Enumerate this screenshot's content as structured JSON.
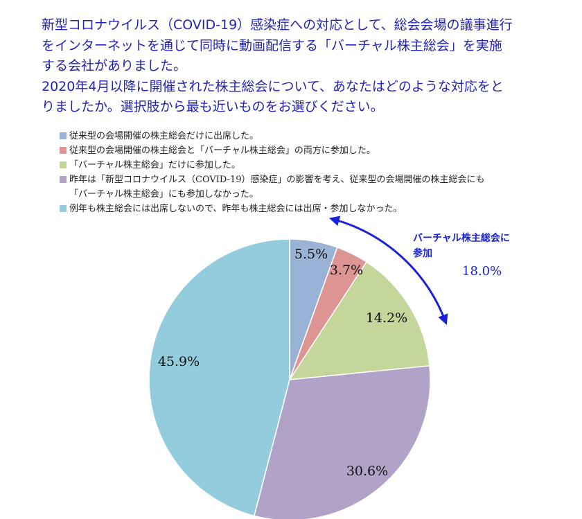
{
  "question": {
    "lines": [
      "新型コロナウイルス（COVID-19）感染症への対応として、総会会場の議事進行",
      "をインターネットを通じて同時に動画配信する「バーチャル株主総会」を実施",
      "する会社がありました。",
      "2020年4月以降に開催された株主総会について、あなたはどのような対応をと",
      "りましたか。選択肢から最も近いものをお選びください。"
    ]
  },
  "chart_data": {
    "type": "pie",
    "start_angle_deg": 0,
    "direction": "clockwise",
    "slices": [
      {
        "label": "従来型の会場開催の株主総会だけに出席した。",
        "label2": "",
        "value": 5.5,
        "display": "5.5%",
        "color": "#9ab2d6"
      },
      {
        "label": "従来型の会場開催の株主総会と「バーチャル株主総会」の両方に参加した。",
        "label2": "",
        "value": 3.7,
        "display": "3.7%",
        "color": "#dd9594"
      },
      {
        "label": "「バーチャル株主総会」だけに参加した。",
        "label2": "",
        "value": 14.2,
        "display": "14.2%",
        "color": "#c5d69b"
      },
      {
        "label": "昨年は「新型コロナウイルス（COVID-19）感染症」の影響を考え、従来型の会場開催の株主総会にも",
        "label2": "「バーチャル株主総会」にも参加しなかった。",
        "value": 30.6,
        "display": "30.6%",
        "color": "#b1a2c8"
      },
      {
        "label": "例年も株主総会には出席しないので、昨年も株主総会には出席・参加しなかった。",
        "label2": "",
        "value": 45.9,
        "display": "45.9%",
        "color": "#93cddd"
      }
    ],
    "legend_position": "top",
    "callout": {
      "text_line1": "バーチャル株主総会に",
      "text_line2": "参加",
      "value": "18.0%",
      "color": "#1b22d6"
    }
  }
}
